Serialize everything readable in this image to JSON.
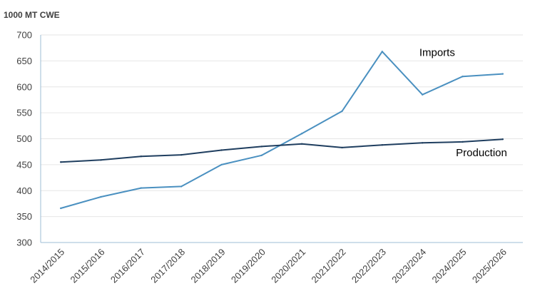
{
  "chart_data": {
    "type": "line",
    "unit_label": "1000 MT CWE",
    "categories": [
      "2014/2015",
      "2015/2016",
      "2016/2017",
      "2017/2018",
      "2018/2019",
      "2019/2020",
      "2020/2021",
      "2021/2022",
      "2022/2023",
      "2023/2024",
      "2024/2025",
      "2025/2026"
    ],
    "series": [
      {
        "name": "Imports",
        "color": "#4a90c0",
        "values": [
          366,
          388,
          405,
          408,
          450,
          468,
          510,
          553,
          668,
          585,
          620,
          625
        ]
      },
      {
        "name": "Production",
        "color": "#1f3e5f",
        "values": [
          455,
          459,
          466,
          469,
          478,
          485,
          490,
          483,
          488,
          492,
          494,
          499
        ]
      }
    ],
    "ylim": [
      300,
      700
    ],
    "yticks": [
      300,
      350,
      400,
      450,
      500,
      550,
      600,
      650,
      700
    ],
    "grid": true
  }
}
